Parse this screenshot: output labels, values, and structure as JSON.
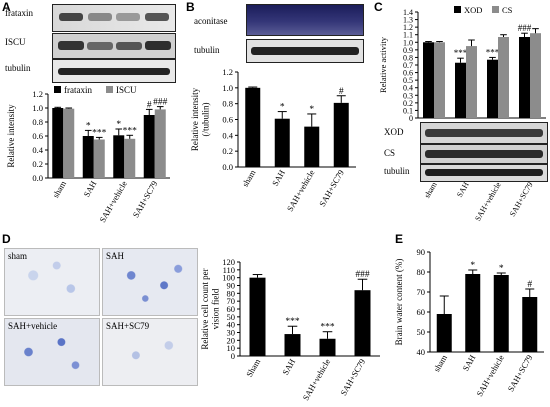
{
  "panels": {
    "A": {
      "letter": "A",
      "blots": [
        "frataxin",
        "ISCU",
        "tubulin"
      ],
      "chart": {
        "type": "bar",
        "categories": [
          "sham",
          "SAH",
          "SAH+vehicle",
          "SAH+SC79"
        ],
        "series": [
          {
            "name": "frataxin",
            "color": "#000000",
            "values": [
              1.0,
              0.6,
              0.61,
              0.9
            ],
            "errors": [
              0.01,
              0.08,
              0.09,
              0.08
            ],
            "sig": [
              "",
              "*",
              "*",
              "#"
            ]
          },
          {
            "name": "ISCU",
            "color": "#8c8c8c",
            "values": [
              0.99,
              0.55,
              0.56,
              0.98
            ],
            "errors": [
              0.01,
              0.03,
              0.05,
              0.04
            ],
            "sig": [
              "",
              "***",
              "***",
              "###"
            ]
          }
        ],
        "ylabel": "Relative intensity",
        "ylim": [
          0,
          1.2
        ],
        "yticks": [
          "0.0",
          "0.2",
          "0.4",
          "0.6",
          "0.8",
          "1.0",
          "1.2"
        ]
      }
    },
    "B": {
      "letter": "B",
      "blots": [
        "aconitase",
        "tubulin"
      ],
      "chart": {
        "type": "bar",
        "categories": [
          "sham",
          "SAH",
          "SAH+vehicle",
          "SAH+SC79"
        ],
        "series": [
          {
            "name": "",
            "color": "#000000",
            "values": [
              1.0,
              0.61,
              0.51,
              0.81
            ],
            "errors": [
              0.01,
              0.09,
              0.16,
              0.09
            ],
            "sig": [
              "",
              "*",
              "*",
              "#"
            ]
          }
        ],
        "ylabel": "Relative intensity (/tubulin)",
        "ylim": [
          0,
          1.2
        ],
        "yticks": [
          "0.0",
          "0.2",
          "0.4",
          "0.6",
          "0.8",
          "1.0",
          "1.2"
        ]
      }
    },
    "C": {
      "letter": "C",
      "blots": [
        "XOD",
        "CS",
        "tubulin"
      ],
      "chart": {
        "type": "bar",
        "categories": [
          "sham",
          "SAH",
          "SAH+vehicle",
          "SAH+SC79"
        ],
        "series": [
          {
            "name": "XOD",
            "color": "#000000",
            "values": [
              1.0,
              0.73,
              0.77,
              1.07
            ],
            "errors": [
              0.01,
              0.06,
              0.03,
              0.05
            ],
            "sig": [
              "",
              "***",
              "***",
              "###"
            ]
          },
          {
            "name": "CS",
            "color": "#8c8c8c",
            "values": [
              1.0,
              0.95,
              1.07,
              1.12
            ],
            "errors": [
              0.01,
              0.08,
              0.03,
              0.06
            ],
            "sig": [
              "",
              "",
              "",
              ""
            ]
          }
        ],
        "ylabel": "Relative activity",
        "ylim": [
          0,
          1.4
        ],
        "yticks": [
          "0",
          "0.1",
          "0.2",
          "0.3",
          "0.4",
          "0.5",
          "0.6",
          "0.7",
          "0.8",
          "0.9",
          "1.0",
          "1.1",
          "1.2",
          "1.3",
          "1.4"
        ]
      }
    },
    "D": {
      "letter": "D",
      "images": [
        "sham",
        "SAH",
        "SAH+vehicle",
        "SAH+SC79"
      ],
      "chart": {
        "type": "bar",
        "categories": [
          "Sham",
          "SAH",
          "SAH+vehicle",
          "SAH+SC79"
        ],
        "series": [
          {
            "name": "",
            "color": "#000000",
            "values": [
              100,
              28,
              22,
              84
            ],
            "errors": [
              4,
              10,
              9,
              14
            ],
            "sig": [
              "",
              "***",
              "***",
              "###"
            ]
          }
        ],
        "ylabel": "Relative cell count per vision field",
        "ylim": [
          0,
          120
        ],
        "yticks": [
          "0",
          "10",
          "20",
          "30",
          "40",
          "50",
          "60",
          "70",
          "80",
          "90",
          "100",
          "110",
          "120"
        ]
      }
    },
    "E": {
      "letter": "E",
      "chart": {
        "type": "bar",
        "categories": [
          "sham",
          "SAH",
          "SAH+vehicle",
          "SAH+SC79"
        ],
        "series": [
          {
            "name": "",
            "color": "#000000",
            "values": [
              59,
              79,
              78.5,
              67.5
            ],
            "errors": [
              9,
              2,
              1,
              4
            ],
            "sig": [
              "",
              "*",
              "*",
              "#"
            ]
          }
        ],
        "ylabel": "Brain water content (%)",
        "ylim": [
          40,
          90
        ],
        "yticks": [
          "40",
          "50",
          "60",
          "70",
          "80",
          "90"
        ]
      }
    }
  },
  "chart_data": [
    {
      "type": "bar",
      "panel": "A",
      "categories": [
        "sham",
        "SAH",
        "SAH+vehicle",
        "SAH+SC79"
      ],
      "series": [
        {
          "name": "frataxin",
          "values": [
            1.0,
            0.6,
            0.61,
            0.9
          ]
        },
        {
          "name": "ISCU",
          "values": [
            0.99,
            0.55,
            0.56,
            0.98
          ]
        }
      ],
      "ylabel": "Relative intensity",
      "ylim": [
        0,
        1.2
      ]
    },
    {
      "type": "bar",
      "panel": "B",
      "categories": [
        "sham",
        "SAH",
        "SAH+vehicle",
        "SAH+SC79"
      ],
      "values": [
        1.0,
        0.61,
        0.51,
        0.81
      ],
      "ylabel": "Relative intensity (/tubulin)",
      "ylim": [
        0,
        1.2
      ]
    },
    {
      "type": "bar",
      "panel": "C",
      "categories": [
        "sham",
        "SAH",
        "SAH+vehicle",
        "SAH+SC79"
      ],
      "series": [
        {
          "name": "XOD",
          "values": [
            1.0,
            0.73,
            0.77,
            1.07
          ]
        },
        {
          "name": "CS",
          "values": [
            1.0,
            0.95,
            1.07,
            1.12
          ]
        }
      ],
      "ylabel": "Relative activity",
      "ylim": [
        0,
        1.4
      ]
    },
    {
      "type": "bar",
      "panel": "D",
      "categories": [
        "Sham",
        "SAH",
        "SAH+vehicle",
        "SAH+SC79"
      ],
      "values": [
        100,
        28,
        22,
        84
      ],
      "ylabel": "Relative cell count per vision field",
      "ylim": [
        0,
        120
      ]
    },
    {
      "type": "bar",
      "panel": "E",
      "categories": [
        "sham",
        "SAH",
        "SAH+vehicle",
        "SAH+SC79"
      ],
      "values": [
        59,
        79,
        78.5,
        67.5
      ],
      "ylabel": "Brain water content (%)",
      "ylim": [
        40,
        90
      ]
    }
  ]
}
